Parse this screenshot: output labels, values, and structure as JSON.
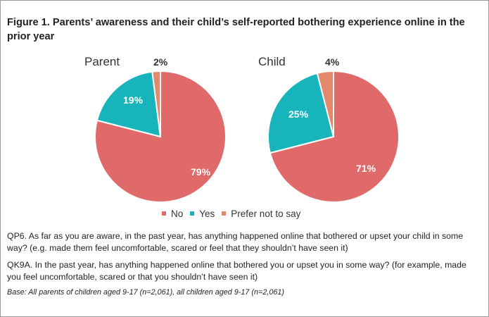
{
  "figure": {
    "title": "Figure 1. Parents’ awareness and their child’s self-reported bothering experience online in the prior year"
  },
  "legend": [
    "No",
    "Yes",
    "Prefer not to say"
  ],
  "colors": {
    "No": "#e06969",
    "Yes": "#18b4bc",
    "Prefer not to say": "#e3896b"
  },
  "chart_data": [
    {
      "type": "pie",
      "title": "Parent",
      "categories": [
        "No",
        "Yes",
        "Prefer not to say"
      ],
      "values": [
        79,
        19,
        2
      ],
      "labels": [
        "79%",
        "19%",
        "2%"
      ]
    },
    {
      "type": "pie",
      "title": "Child",
      "categories": [
        "No",
        "Yes",
        "Prefer not to say"
      ],
      "values": [
        71,
        25,
        4
      ],
      "labels": [
        "71%",
        "25%",
        "4%"
      ]
    }
  ],
  "notes": {
    "qp6": "QP6. As far as you are aware, in the past year, has anything happened online that bothered or upset your child in some way? (e.g. made them feel uncomfortable, scared or feel that they shouldn’t have seen it)",
    "qk9a": "QK9A. In the past year, has anything happened online that bothered you or upset you in some way? (for example, made you feel uncomfortable, scared or that you shouldn’t have seen it)",
    "base": "Base: All parents of children aged 9-17 (n=2,061), all children aged 9-17 (n=2,061)"
  }
}
